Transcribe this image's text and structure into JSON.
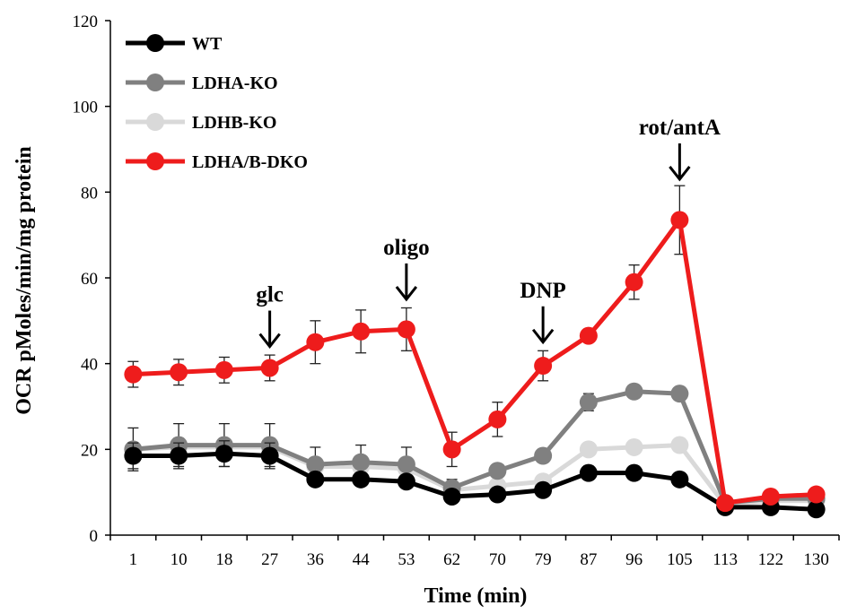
{
  "chart_data": {
    "type": "line",
    "title": "",
    "xlabel": "Time (min)",
    "ylabel": "OCR pMoles/min/mg protein",
    "ylim": [
      0,
      120
    ],
    "yticks": [
      0,
      20,
      40,
      60,
      80,
      100,
      120
    ],
    "x": [
      "1",
      "10",
      "18",
      "27",
      "36",
      "44",
      "53",
      "62",
      "70",
      "79",
      "87",
      "96",
      "105",
      "113",
      "122",
      "130"
    ],
    "grid": false,
    "legend_position": "top-left",
    "series": [
      {
        "name": "WT",
        "color": "#000000",
        "values": [
          18.5,
          18.5,
          19,
          18.5,
          13,
          13,
          12.5,
          9,
          9.5,
          10.5,
          14.5,
          14.5,
          13,
          6.5,
          6.5,
          6
        ],
        "errors": [
          3,
          3,
          3,
          3,
          1,
          1,
          1,
          1,
          1,
          1,
          1,
          1,
          1,
          1,
          1,
          1
        ]
      },
      {
        "name": "LDHA-KO",
        "color": "#808080",
        "values": [
          20,
          21,
          21,
          21,
          16.5,
          17,
          16.5,
          11,
          15,
          18.5,
          31,
          33.5,
          33,
          7.5,
          8.5,
          8.5
        ],
        "errors": [
          5,
          5,
          5,
          5,
          4,
          4,
          4,
          2,
          1.5,
          1.5,
          2,
          1,
          1,
          1,
          1,
          1
        ]
      },
      {
        "name": "LDHB-KO",
        "color": "#d9d9d9",
        "values": [
          20,
          20.5,
          20.5,
          20.5,
          16,
          16,
          15.5,
          10.5,
          11.5,
          12.5,
          20,
          20.5,
          21,
          7,
          8,
          8
        ],
        "errors": [
          1,
          1,
          1,
          1,
          1,
          1,
          1,
          1,
          1,
          1,
          1,
          1,
          1,
          1,
          1,
          1
        ]
      },
      {
        "name": "LDHA/B-DKO",
        "color": "#ee1c1c",
        "values": [
          37.5,
          38,
          38.5,
          39,
          45,
          47.5,
          48,
          20,
          27,
          39.5,
          46.5,
          59,
          73.5,
          7.5,
          9,
          9.5
        ],
        "errors": [
          3,
          3,
          3,
          3,
          5,
          5,
          5,
          4,
          4,
          3.5,
          1,
          4,
          8,
          1,
          1,
          1
        ]
      }
    ],
    "annotations": [
      {
        "label": "glc",
        "x_index": 3,
        "arrow_tip_value": 44
      },
      {
        "label": "oligo",
        "x_index": 6,
        "arrow_tip_value": 55
      },
      {
        "label": "DNP",
        "x_index": 9,
        "arrow_tip_value": 45
      },
      {
        "label": "rot/antA",
        "x_index": 12,
        "arrow_tip_value": 83
      }
    ]
  }
}
